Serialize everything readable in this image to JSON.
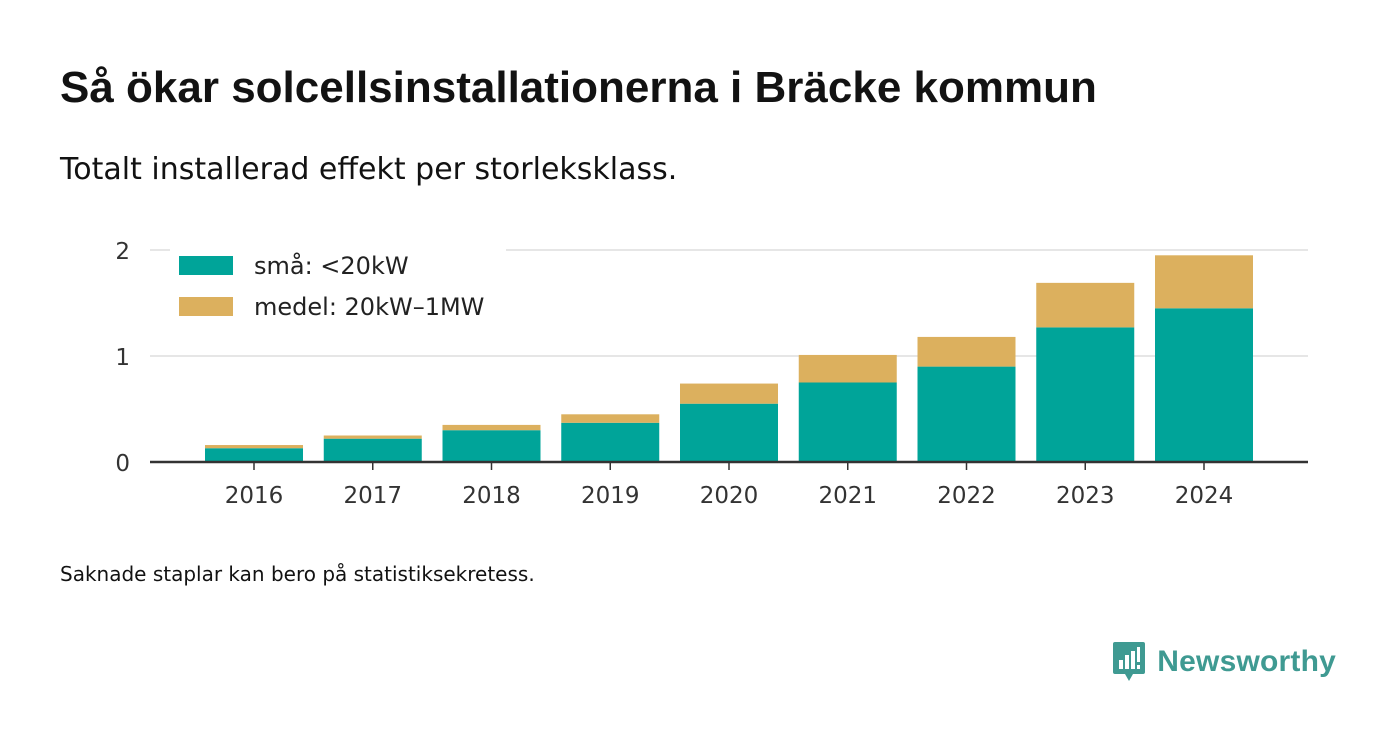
{
  "header": {
    "title": "Så ökar solcellsinstallationerna i Bräcke kommun",
    "subtitle": "Totalt installerad effekt per storleksklass."
  },
  "footer": {
    "note": "Saknade staplar kan bero på statistiksekretess.",
    "brand": "Newsworthy",
    "brand_icon": "newsworthy-logo-icon"
  },
  "colors": {
    "small": "#00a499",
    "medium": "#dcb05e",
    "grid": "#dddddd",
    "axis": "#333333",
    "brand": "#3f9a92"
  },
  "chart_data": {
    "type": "bar",
    "stacked": true,
    "categories": [
      "2016",
      "2017",
      "2018",
      "2019",
      "2020",
      "2021",
      "2022",
      "2023",
      "2024"
    ],
    "series": [
      {
        "name": "små: <20kW",
        "color": "#00a499",
        "values": [
          0.13,
          0.22,
          0.3,
          0.37,
          0.55,
          0.75,
          0.9,
          1.27,
          1.45
        ]
      },
      {
        "name": "medel: 20kW–1MW",
        "color": "#dcb05e",
        "values": [
          0.03,
          0.03,
          0.05,
          0.08,
          0.19,
          0.26,
          0.28,
          0.42,
          0.5
        ]
      }
    ],
    "yticks": [
      0,
      1,
      2
    ],
    "ylim": [
      0,
      2
    ],
    "grid": true,
    "legend_position": "top-left",
    "xlabel": "",
    "ylabel": ""
  }
}
